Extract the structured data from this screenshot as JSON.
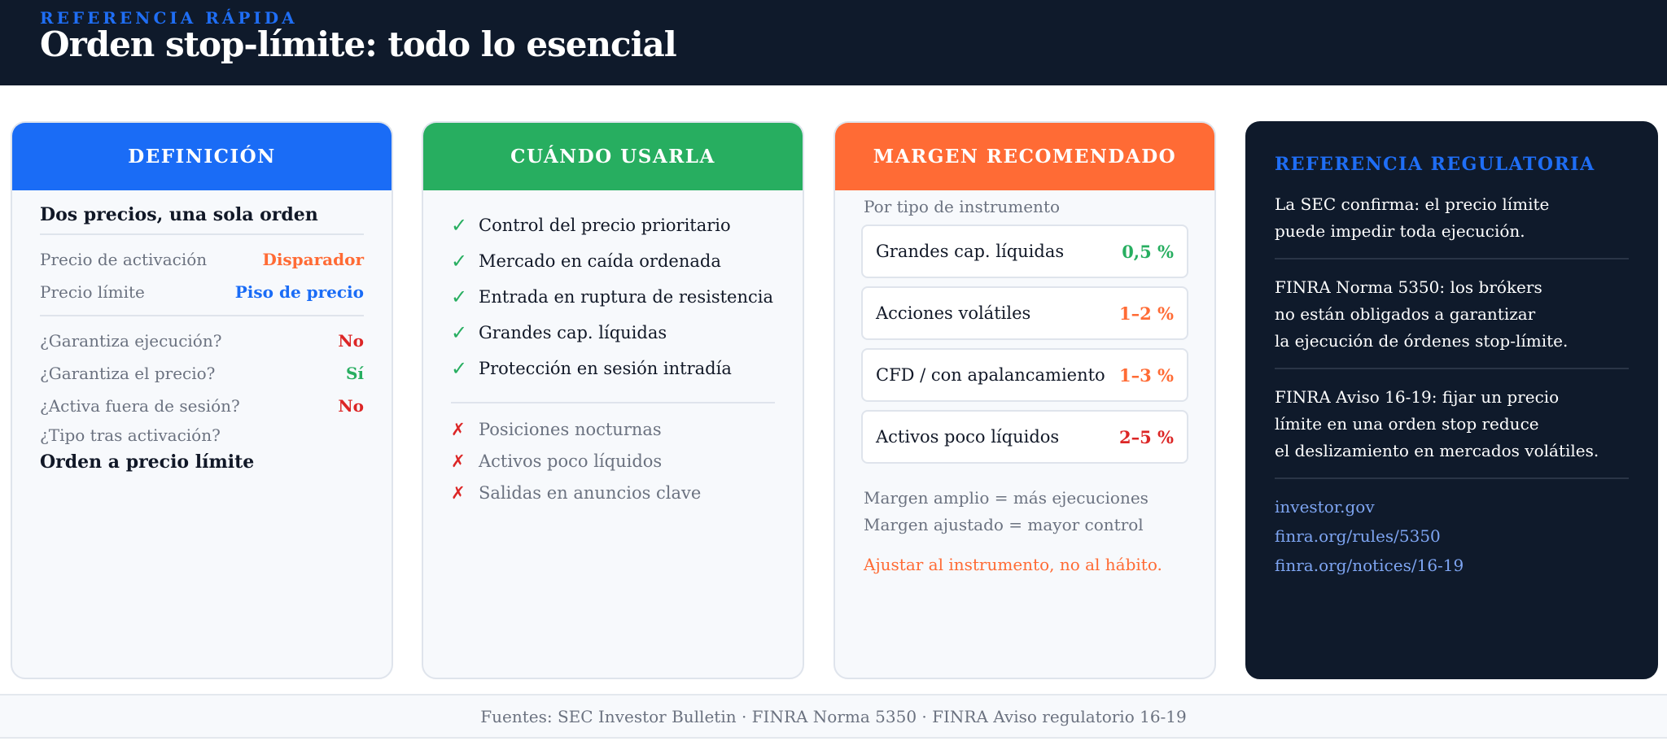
{
  "header": {
    "kicker": "REFERENCIA RÁPIDA",
    "title": "Orden stop-límite: todo lo esencial"
  },
  "colors": {
    "navy": "#0f1a2b",
    "blue": "#1a6cf6",
    "green": "#27ae60",
    "orange": "#ff6b35",
    "red": "#dc2626"
  },
  "definition": {
    "heading": "DEFINICIÓN",
    "subtitle": "Dos precios, una sola orden",
    "prices": [
      {
        "label": "Precio de activación",
        "value": "Disparador"
      },
      {
        "label": "Precio límite",
        "value": "Piso de precio"
      }
    ],
    "questions": [
      {
        "label": "¿Garantiza ejecución?",
        "value": "No"
      },
      {
        "label": "¿Garantiza el precio?",
        "value": "Sí"
      },
      {
        "label": "¿Activa fuera de sesión?",
        "value": "No"
      }
    ],
    "type_question": "¿Tipo tras activación?",
    "type_answer": "Orden a precio límite"
  },
  "usage": {
    "heading": "CUÁNDO USARLA",
    "check_icon": "✓",
    "cross_icon": "✗",
    "pros": [
      "Control del precio prioritario",
      "Mercado en caída ordenada",
      "Entrada en ruptura de resistencia",
      "Grandes cap. líquidas",
      "Protección en sesión intradía"
    ],
    "cons": [
      "Posiciones nocturnas",
      "Activos poco líquidos",
      "Salidas en anuncios clave"
    ]
  },
  "margin": {
    "heading": "MARGEN RECOMENDADO",
    "label": "Por tipo de instrumento",
    "rows": [
      {
        "name": "Grandes cap. líquidas",
        "value": "0,5 %"
      },
      {
        "name": "Acciones volátiles",
        "value": "1–2 %"
      },
      {
        "name": "CFD / con apalancamiento",
        "value": "1–3 %"
      },
      {
        "name": "Activos poco líquidos",
        "value": "2–5 %"
      }
    ],
    "note1": "Margen amplio = más ejecuciones",
    "note2": "Margen ajustado = mayor control",
    "tip": "Ajustar al instrumento, no al hábito."
  },
  "regulatory": {
    "heading": "REFERENCIA REGULATORIA",
    "p1": [
      "La SEC confirma: el precio límite",
      "puede impedir toda ejecución."
    ],
    "p2": [
      "FINRA Norma 5350: los brókers",
      "no están obligados a garantizar",
      "la ejecución de órdenes stop-límite."
    ],
    "p3": [
      "FINRA Aviso 16-19: fijar un precio",
      "límite en una orden stop reduce",
      "el deslizamiento en mercados volátiles."
    ],
    "links": [
      "investor.gov",
      "finra.org/rules/5350",
      "finra.org/notices/16-19"
    ]
  },
  "footer": {
    "text": "Fuentes: SEC Investor Bulletin · FINRA Norma 5350 · FINRA Aviso regulatorio 16-19"
  }
}
